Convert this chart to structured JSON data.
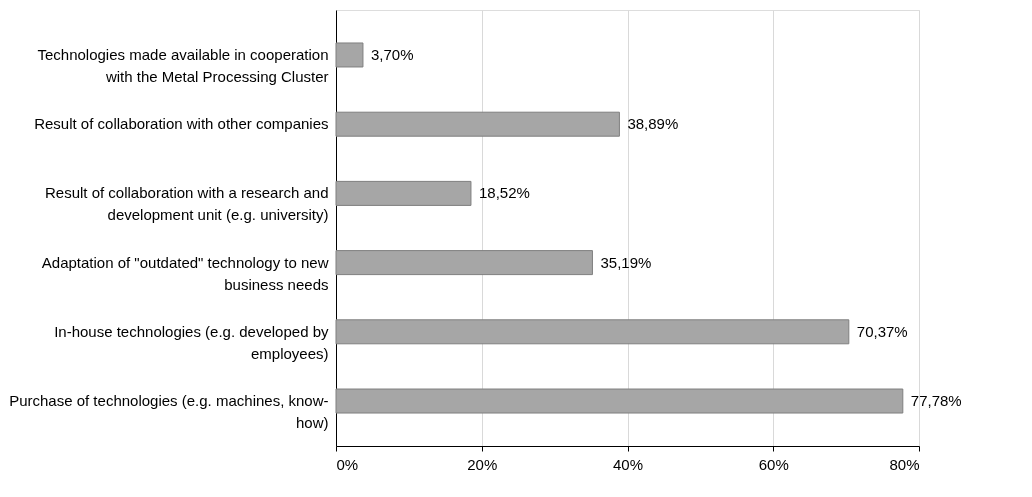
{
  "chart_data": {
    "type": "bar",
    "orientation": "horizontal",
    "categories": [
      "Technologies made available in cooperation with the Metal Processing Cluster",
      "Result of collaboration with other companies",
      "Result of collaboration with a research and development unit (e.g. university)",
      "Adaptation of \"outdated\" technology to new business needs",
      "In-house technologies (e.g. developed by employees)",
      "Purchase of technologies (e.g. machines, know-how)"
    ],
    "values": [
      3.7,
      38.89,
      18.52,
      35.19,
      70.37,
      77.78
    ],
    "value_labels": [
      "3,70%",
      "38,89%",
      "18,52%",
      "35,19%",
      "70,37%",
      "77,78%"
    ],
    "color": "#a6a6a6",
    "xlim": [
      0,
      80
    ],
    "xticks": [
      {
        "value": 0,
        "label": "0%"
      },
      {
        "value": 20,
        "label": "20%"
      },
      {
        "value": 40,
        "label": "40%"
      },
      {
        "value": 60,
        "label": "60%"
      },
      {
        "value": 80,
        "label": "80%"
      }
    ],
    "grid": "x"
  }
}
